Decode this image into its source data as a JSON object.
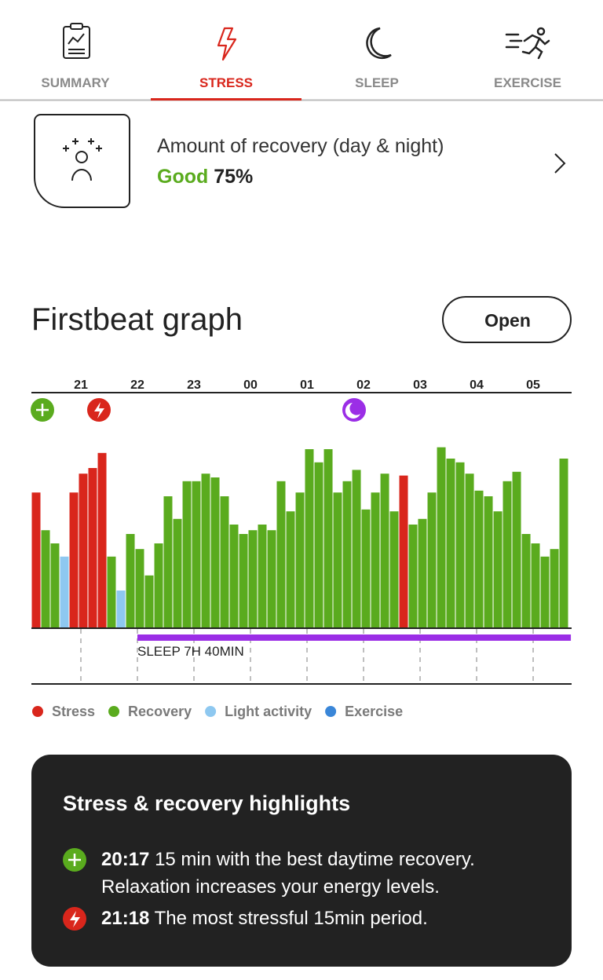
{
  "tabs": [
    "SUMMARY",
    "STRESS",
    "SLEEP",
    "EXERCISE"
  ],
  "recovery": {
    "title": "Amount of recovery (day & night)",
    "rating": "Good",
    "percent": "75%"
  },
  "open_button": "Open",
  "chart_data": {
    "type": "bar",
    "title": "Firstbeat graph",
    "xlim": [
      20.125,
      29.68
    ],
    "ylim": [
      0,
      100
    ],
    "xticks": [
      {
        "value": 21,
        "label": "21"
      },
      {
        "value": 22,
        "label": "22"
      },
      {
        "value": 23,
        "label": "23"
      },
      {
        "value": 24,
        "label": "00"
      },
      {
        "value": 25,
        "label": "01"
      },
      {
        "value": 26,
        "label": "02"
      },
      {
        "value": 27,
        "label": "03"
      },
      {
        "value": 28,
        "label": "04"
      },
      {
        "value": 29,
        "label": "05"
      }
    ],
    "series": [
      {
        "name": "Stress",
        "color": "#d9261c",
        "x": [
          20.125,
          20.792,
          20.958,
          21.125,
          21.292,
          26.625
        ],
        "values": [
          72,
          72,
          82,
          85,
          93,
          81
        ]
      },
      {
        "name": "Recovery",
        "color": "#5aab1e",
        "x": [
          20.292,
          20.458,
          21.458,
          21.792,
          21.958,
          22.125,
          22.292,
          22.458,
          22.625,
          22.792,
          22.958,
          23.125,
          23.292,
          23.458,
          23.625,
          23.792,
          23.958,
          24.125,
          24.292,
          24.458,
          24.625,
          24.792,
          24.958,
          25.125,
          25.292,
          25.458,
          25.625,
          25.792,
          25.958,
          26.125,
          26.292,
          26.458,
          26.792,
          26.958,
          27.125,
          27.292,
          27.458,
          27.625,
          27.792,
          27.958,
          28.125,
          28.292,
          28.458,
          28.625,
          28.792,
          28.958,
          29.125,
          29.292,
          29.458
        ],
        "values": [
          52,
          45,
          38,
          50,
          42,
          28,
          45,
          70,
          58,
          78,
          78,
          82,
          80,
          70,
          55,
          50,
          52,
          55,
          52,
          78,
          62,
          72,
          95,
          88,
          95,
          72,
          78,
          84,
          63,
          72,
          82,
          62,
          55,
          58,
          72,
          96,
          90,
          88,
          82,
          73,
          70,
          62,
          78,
          83,
          50,
          45,
          38,
          42,
          90
        ]
      },
      {
        "name": "Light activity",
        "color": "#8ec8f0",
        "x": [
          20.625,
          21.625
        ],
        "values": [
          38,
          20
        ]
      },
      {
        "name": "Exercise",
        "color": "#3a86d8",
        "x": [],
        "values": []
      }
    ],
    "sleep": {
      "label": "SLEEP 7H 40MIN",
      "start": 22,
      "end": 29.667,
      "color": "#9b2ee6"
    }
  },
  "highlights": {
    "title": "Stress & recovery highlights",
    "items": [
      {
        "time": "20:17",
        "text": "15 min with the best daytime recovery. Relaxation increases your energy levels."
      },
      {
        "time": "21:18",
        "text": "The most stressful 15min period."
      }
    ]
  }
}
